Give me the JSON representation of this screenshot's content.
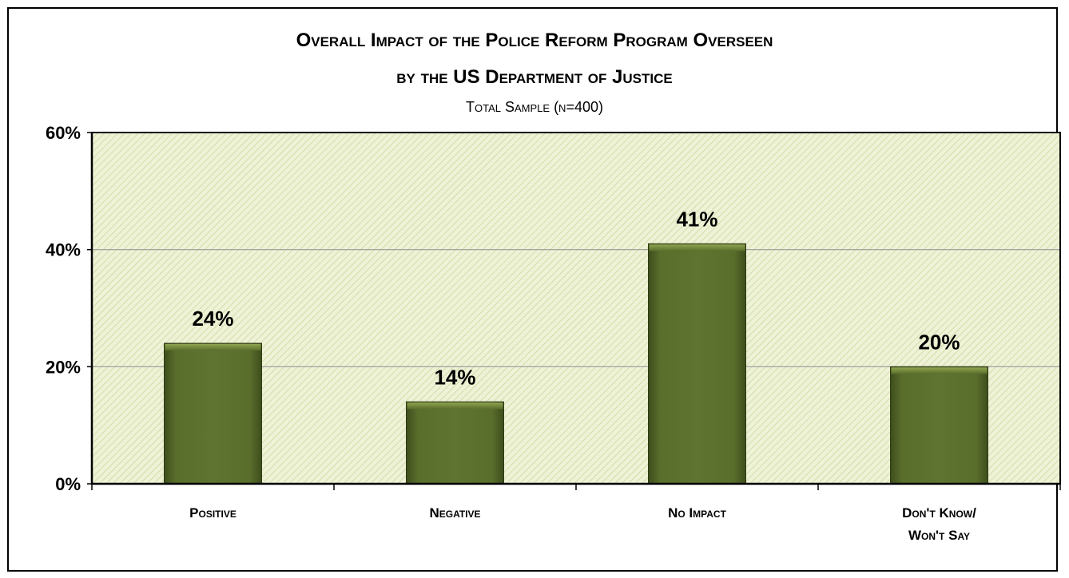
{
  "chart_data": {
    "type": "bar",
    "title_lines": [
      "Overall Impact of the Police Reform Program Overseen",
      "by the US Department of Justice"
    ],
    "subtitle": "Total Sample (n=400)",
    "categories": [
      [
        "Positive"
      ],
      [
        "Negative"
      ],
      [
        "No Impact"
      ],
      [
        "Don't Know/",
        "Won't Say"
      ]
    ],
    "values": [
      24,
      14,
      41,
      20
    ],
    "data_labels": [
      "24%",
      "14%",
      "41%",
      "20%"
    ],
    "ylim": [
      0,
      60
    ],
    "yticks": [
      0,
      20,
      40,
      60
    ],
    "ytick_labels": [
      "0%",
      "20%",
      "40%",
      "60%"
    ],
    "grid": true,
    "legend": "none",
    "colors": {
      "bar": "#5a6e2c",
      "bar_dark": "#3e4d1c",
      "bar_light": "#7c9040",
      "plot_bg": "#eef2d6",
      "hatch": "#c9d39a",
      "grid": "#9a9a9a"
    }
  }
}
